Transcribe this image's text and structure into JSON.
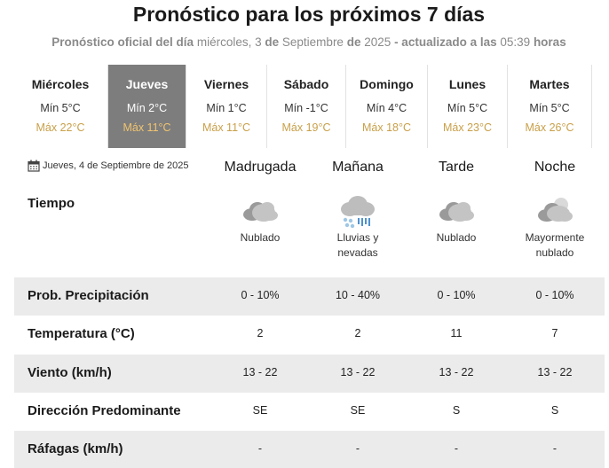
{
  "header": {
    "title": "Pronóstico para los próximos 7 días",
    "subtitle_prefix": "Pronóstico oficial del día",
    "subtitle_weekday": "miércoles, 3",
    "subtitle_de1": "de",
    "subtitle_month": "Septiembre",
    "subtitle_de2": "de",
    "subtitle_year": "2025",
    "subtitle_updated": "- actualizado a las",
    "subtitle_time": "05:39",
    "subtitle_suffix": "horas"
  },
  "days": [
    {
      "name": "Miércoles",
      "min": "Mín 5°C",
      "max": "Máx 22°C"
    },
    {
      "name": "Jueves",
      "min": "Mín 2°C",
      "max": "Máx 11°C",
      "active": true
    },
    {
      "name": "Viernes",
      "min": "Mín 1°C",
      "max": "Máx 11°C"
    },
    {
      "name": "Sábado",
      "min": "Mín -1°C",
      "max": "Máx 19°C"
    },
    {
      "name": "Domingo",
      "min": "Mín 4°C",
      "max": "Máx 18°C"
    },
    {
      "name": "Lunes",
      "min": "Mín 5°C",
      "max": "Máx 23°C"
    },
    {
      "name": "Martes",
      "min": "Mín 5°C",
      "max": "Máx 26°C"
    }
  ],
  "detail": {
    "date": "Jueves, 4 de Septiembre de 2025",
    "periods": [
      "Madrugada",
      "Mañana",
      "Tarde",
      "Noche"
    ],
    "tiempo_label": "Tiempo",
    "weather": [
      {
        "icon": "cloudy-icon",
        "desc1": "Nublado",
        "desc2": ""
      },
      {
        "icon": "rain-snow-icon",
        "desc1": "Lluvias y",
        "desc2": "nevadas"
      },
      {
        "icon": "cloudy-icon",
        "desc1": "Nublado",
        "desc2": ""
      },
      {
        "icon": "mostly-cloudy-night-icon",
        "desc1": "Mayormente",
        "desc2": "nublado"
      }
    ],
    "rows": [
      {
        "label": "Prob. Precipitación",
        "values": [
          "0 - 10%",
          "10 - 40%",
          "0 - 10%",
          "0 - 10%"
        ]
      },
      {
        "label": "Temperatura (°C)",
        "values": [
          "2",
          "2",
          "11",
          "7"
        ]
      },
      {
        "label": "Viento (km/h)",
        "values": [
          "13 - 22",
          "13 - 22",
          "13 - 22",
          "13 - 22"
        ]
      },
      {
        "label": "Dirección Predominante",
        "values": [
          "SE",
          "SE",
          "S",
          "S"
        ]
      },
      {
        "label": "Ráfagas (km/h)",
        "values": [
          "-",
          "-",
          "-",
          "-"
        ]
      }
    ]
  },
  "colors": {
    "active_day_bg": "#7d7d7d",
    "max_temp": "#c9a04a",
    "row_shade": "#ebebeb"
  }
}
